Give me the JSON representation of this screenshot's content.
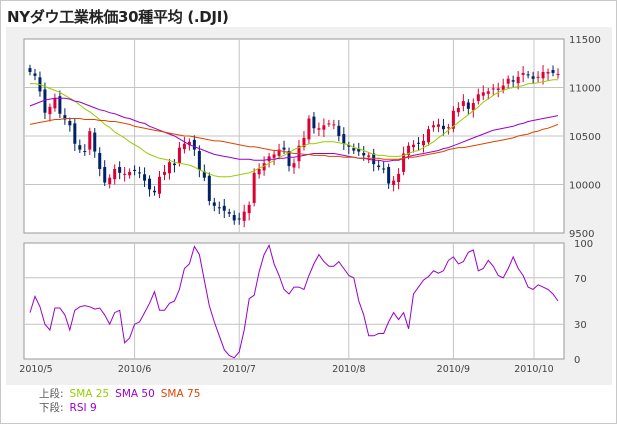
{
  "title": "NYダウ工業株価30種平均 (.DJI)",
  "legend": {
    "upper_label": "上段:",
    "lower_label": "下段:",
    "upper": [
      {
        "name": "SMA 25",
        "color": "#99cc00"
      },
      {
        "name": "SMA 50",
        "color": "#9900cc"
      },
      {
        "name": "SMA 75",
        "color": "#dd4400"
      }
    ],
    "lower": [
      {
        "name": "RSI 9",
        "color": "#9900cc"
      }
    ]
  },
  "colors": {
    "up": "#dd0033",
    "down": "#002266",
    "grid": "#c4c4c4"
  },
  "chart_data": [
    {
      "type": "candlestick",
      "title": "",
      "x_ticks": [
        "2010/5",
        "2010/6",
        "2010/7",
        "2010/8",
        "2010/9",
        "2010/10"
      ],
      "yticks": [
        9500,
        10000,
        10500,
        11000,
        11500
      ],
      "ylim": [
        9500,
        11500
      ],
      "grid": true,
      "series": [
        {
          "name": "DJI",
          "values": [
            11160,
            11120,
            10960,
            10740,
            10800,
            10890,
            10730,
            10670,
            10610,
            10420,
            10360,
            10340,
            10550,
            10340,
            10160,
            10020,
            10070,
            10160,
            10120,
            10110,
            10130,
            10140,
            10120,
            10040,
            9950,
            9920,
            10080,
            10130,
            10230,
            10200,
            10380,
            10420,
            10440,
            10360,
            10150,
            10070,
            9830,
            9780,
            9760,
            9730,
            9700,
            9630,
            9640,
            9720,
            9790,
            10120,
            10160,
            10220,
            10290,
            10310,
            10360,
            10360,
            10190,
            10220,
            10400,
            10480,
            10680,
            10580,
            10580,
            10610,
            10630,
            10620,
            10500,
            10420,
            10390,
            10350,
            10340,
            10300,
            10300,
            10210,
            10180,
            10160,
            10010,
            10040,
            10110,
            10320,
            10400,
            10410,
            10420,
            10450,
            10570,
            10610,
            10620,
            10570,
            10590,
            10760,
            10790,
            10860,
            10780,
            10840,
            10930,
            10950,
            10960,
            10990,
            10990,
            11020,
            11090,
            11060,
            11110,
            11150,
            11130,
            11090,
            11110,
            11160,
            11160,
            11150,
            11140
          ]
        },
        {
          "name": "SMA 25",
          "values": [
            11040,
            11040,
            11030,
            11010,
            10990,
            10970,
            10950,
            10920,
            10890,
            10860,
            10820,
            10780,
            10750,
            10710,
            10670,
            10620,
            10590,
            10540,
            10510,
            10480,
            10440,
            10410,
            10380,
            10340,
            10310,
            10290,
            10270,
            10260,
            10250,
            10230,
            10220,
            10210,
            10200,
            10180,
            10150,
            10130,
            10110,
            10090,
            10080,
            10080,
            10080,
            10090,
            10100,
            10110,
            10120,
            10140,
            10170,
            10190,
            10220,
            10250,
            10280,
            10300,
            10330,
            10360,
            10380,
            10400,
            10420,
            10420,
            10430,
            10440,
            10440,
            10440,
            10430,
            10420,
            10410,
            10380,
            10370,
            10350,
            10330,
            10310,
            10300,
            10300,
            10290,
            10290,
            10290,
            10300,
            10320,
            10340,
            10350,
            10380,
            10410,
            10440,
            10480,
            10520,
            10560,
            10600,
            10640,
            10680,
            10720,
            10760,
            10800,
            10850,
            10880,
            10920,
            10950,
            10970,
            10990,
            11000,
            11010,
            11020,
            11040,
            11040,
            11050,
            11060,
            11070,
            11080,
            11080
          ]
        },
        {
          "name": "SMA 50",
          "values": [
            10810,
            10830,
            10850,
            10870,
            10880,
            10890,
            10890,
            10890,
            10880,
            10860,
            10850,
            10830,
            10810,
            10790,
            10770,
            10760,
            10740,
            10730,
            10710,
            10690,
            10680,
            10660,
            10640,
            10630,
            10600,
            10580,
            10560,
            10540,
            10520,
            10500,
            10470,
            10440,
            10410,
            10390,
            10370,
            10350,
            10330,
            10310,
            10300,
            10290,
            10280,
            10270,
            10260,
            10260,
            10260,
            10250,
            10250,
            10250,
            10260,
            10260,
            10270,
            10270,
            10280,
            10280,
            10290,
            10300,
            10310,
            10320,
            10320,
            10320,
            10320,
            10320,
            10310,
            10300,
            10290,
            10280,
            10270,
            10270,
            10260,
            10250,
            10250,
            10240,
            10240,
            10250,
            10250,
            10270,
            10290,
            10300,
            10310,
            10320,
            10330,
            10340,
            10350,
            10370,
            10380,
            10400,
            10420,
            10440,
            10460,
            10480,
            10500,
            10520,
            10540,
            10560,
            10570,
            10580,
            10590,
            10600,
            10620,
            10630,
            10650,
            10660,
            10670,
            10680,
            10690,
            10700,
            10710
          ]
        },
        {
          "name": "SMA 75",
          "values": [
            10620,
            10630,
            10640,
            10650,
            10660,
            10670,
            10670,
            10680,
            10680,
            10680,
            10680,
            10670,
            10670,
            10670,
            10660,
            10660,
            10650,
            10650,
            10640,
            10630,
            10620,
            10600,
            10590,
            10580,
            10570,
            10560,
            10550,
            10540,
            10530,
            10520,
            10510,
            10500,
            10500,
            10490,
            10480,
            10470,
            10460,
            10450,
            10450,
            10440,
            10430,
            10420,
            10410,
            10400,
            10390,
            10390,
            10380,
            10370,
            10360,
            10350,
            10350,
            10340,
            10330,
            10320,
            10320,
            10310,
            10310,
            10300,
            10300,
            10300,
            10290,
            10290,
            10290,
            10280,
            10280,
            10280,
            10270,
            10270,
            10270,
            10270,
            10270,
            10260,
            10260,
            10260,
            10260,
            10270,
            10280,
            10280,
            10290,
            10300,
            10310,
            10320,
            10330,
            10340,
            10360,
            10370,
            10380,
            10380,
            10390,
            10400,
            10410,
            10420,
            10430,
            10440,
            10450,
            10460,
            10470,
            10480,
            10500,
            10510,
            10520,
            10540,
            10550,
            10570,
            10580,
            10600,
            10620
          ]
        }
      ]
    },
    {
      "type": "line",
      "title": "",
      "x_ticks": [
        "2010/5",
        "2010/6",
        "2010/7",
        "2010/8",
        "2010/9",
        "2010/10"
      ],
      "yticks": [
        0,
        30,
        70,
        100
      ],
      "ylim": [
        0,
        100
      ],
      "grid": true,
      "series": [
        {
          "name": "RSI 9",
          "values": [
            40,
            54,
            45,
            30,
            25,
            44,
            44,
            38,
            25,
            42,
            45,
            46,
            45,
            43,
            44,
            38,
            30,
            40,
            42,
            14,
            18,
            30,
            32,
            40,
            48,
            58,
            42,
            42,
            48,
            50,
            60,
            78,
            82,
            97,
            90,
            68,
            46,
            32,
            20,
            8,
            3,
            1,
            6,
            25,
            52,
            55,
            75,
            90,
            98,
            82,
            72,
            60,
            56,
            62,
            62,
            60,
            72,
            82,
            90,
            84,
            80,
            80,
            84,
            78,
            72,
            70,
            50,
            38,
            20,
            20,
            22,
            22,
            32,
            40,
            34,
            40,
            26,
            56,
            62,
            68,
            71,
            76,
            74,
            76,
            85,
            88,
            82,
            84,
            92,
            94,
            76,
            78,
            85,
            80,
            72,
            70,
            78,
            88,
            78,
            72,
            62,
            60,
            64,
            62,
            60,
            56,
            50
          ]
        }
      ]
    }
  ]
}
